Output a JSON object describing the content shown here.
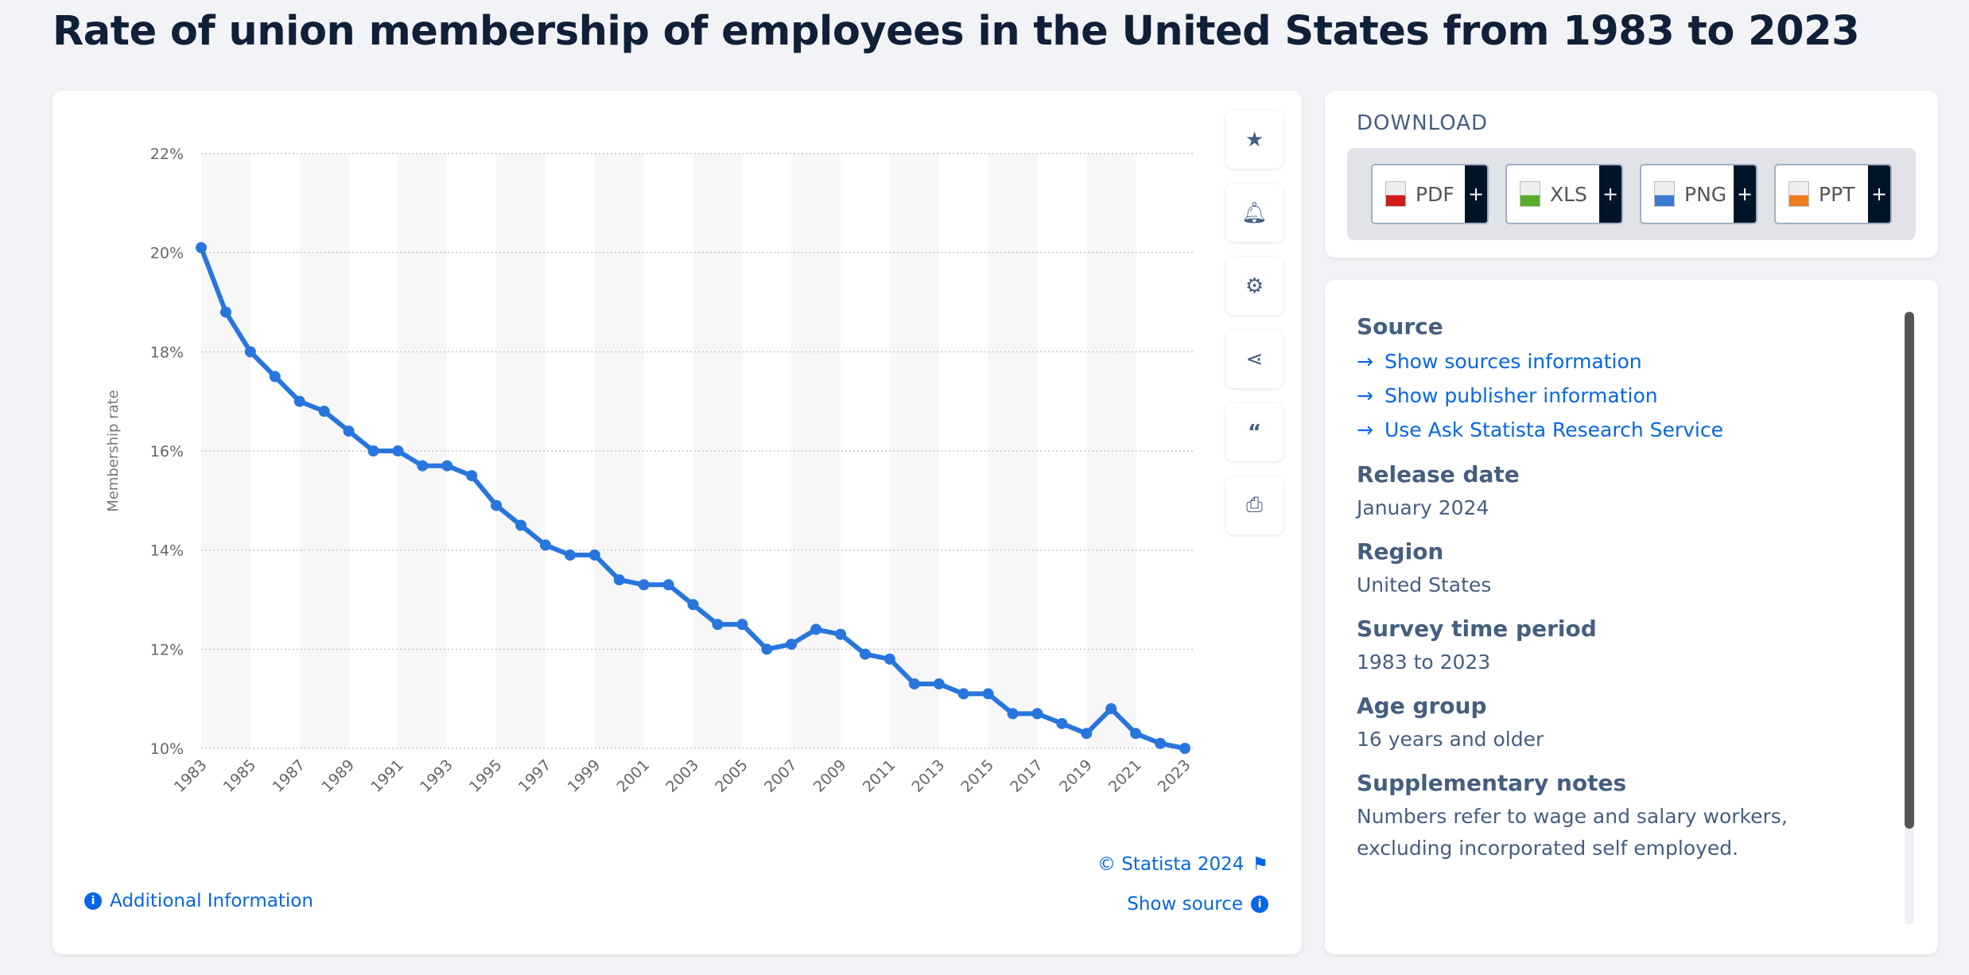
{
  "title": "Rate of union membership of employees in the United States from 1983 to 2023",
  "chart_data": {
    "type": "line",
    "title": "Rate of union membership of employees in the United States from 1983 to 2023",
    "xlabel": "",
    "ylabel": "Membership rate",
    "x": [
      1983,
      1984,
      1985,
      1986,
      1987,
      1988,
      1989,
      1990,
      1991,
      1992,
      1993,
      1994,
      1995,
      1996,
      1997,
      1998,
      1999,
      2000,
      2001,
      2002,
      2003,
      2004,
      2005,
      2006,
      2007,
      2008,
      2009,
      2010,
      2011,
      2012,
      2013,
      2014,
      2015,
      2016,
      2017,
      2018,
      2019,
      2020,
      2021,
      2022,
      2023
    ],
    "series": [
      {
        "name": "Membership rate",
        "color": "#2876dd",
        "values": [
          20.1,
          18.8,
          18.0,
          17.5,
          17.0,
          16.8,
          16.4,
          16.0,
          16.0,
          15.7,
          15.7,
          15.5,
          14.9,
          14.5,
          14.1,
          13.9,
          13.9,
          13.4,
          13.3,
          13.3,
          12.9,
          12.5,
          12.5,
          12.0,
          12.1,
          12.4,
          12.3,
          11.9,
          11.8,
          11.3,
          11.3,
          11.1,
          11.1,
          10.7,
          10.7,
          10.5,
          10.3,
          10.8,
          10.3,
          10.1,
          10.0
        ]
      }
    ],
    "ylim": [
      10,
      22
    ],
    "yticks": [
      "10%",
      "12%",
      "14%",
      "16%",
      "18%",
      "20%",
      "22%"
    ],
    "xticks": [
      "1983",
      "1985",
      "1987",
      "1989",
      "1991",
      "1993",
      "1995",
      "1997",
      "1999",
      "2001",
      "2003",
      "2005",
      "2007",
      "2009",
      "2011",
      "2013",
      "2015",
      "2017",
      "2019",
      "2021",
      "2023"
    ],
    "grid": true
  },
  "footer": {
    "copyright": "© Statista 2024",
    "additional_info": "Additional Information",
    "show_source": "Show source"
  },
  "download": {
    "title": "DOWNLOAD",
    "buttons": [
      {
        "label": "PDF",
        "color": "#d11a1a"
      },
      {
        "label": "XLS",
        "color": "#5aad2a"
      },
      {
        "label": "PNG",
        "color": "#3a7ad0"
      },
      {
        "label": "PPT",
        "color": "#ef7d1a"
      }
    ],
    "plus": "+"
  },
  "info": {
    "source_heading": "Source",
    "links": [
      "Show sources information",
      "Show publisher information",
      "Use Ask Statista Research Service"
    ],
    "release_heading": "Release date",
    "release": "January 2024",
    "region_heading": "Region",
    "region": "United States",
    "period_heading": "Survey time period",
    "period": "1983 to 2023",
    "age_heading": "Age group",
    "age": "16 years and older",
    "notes_heading": "Supplementary notes",
    "notes": "Numbers refer to wage and salary workers, excluding incorporated self employed."
  }
}
